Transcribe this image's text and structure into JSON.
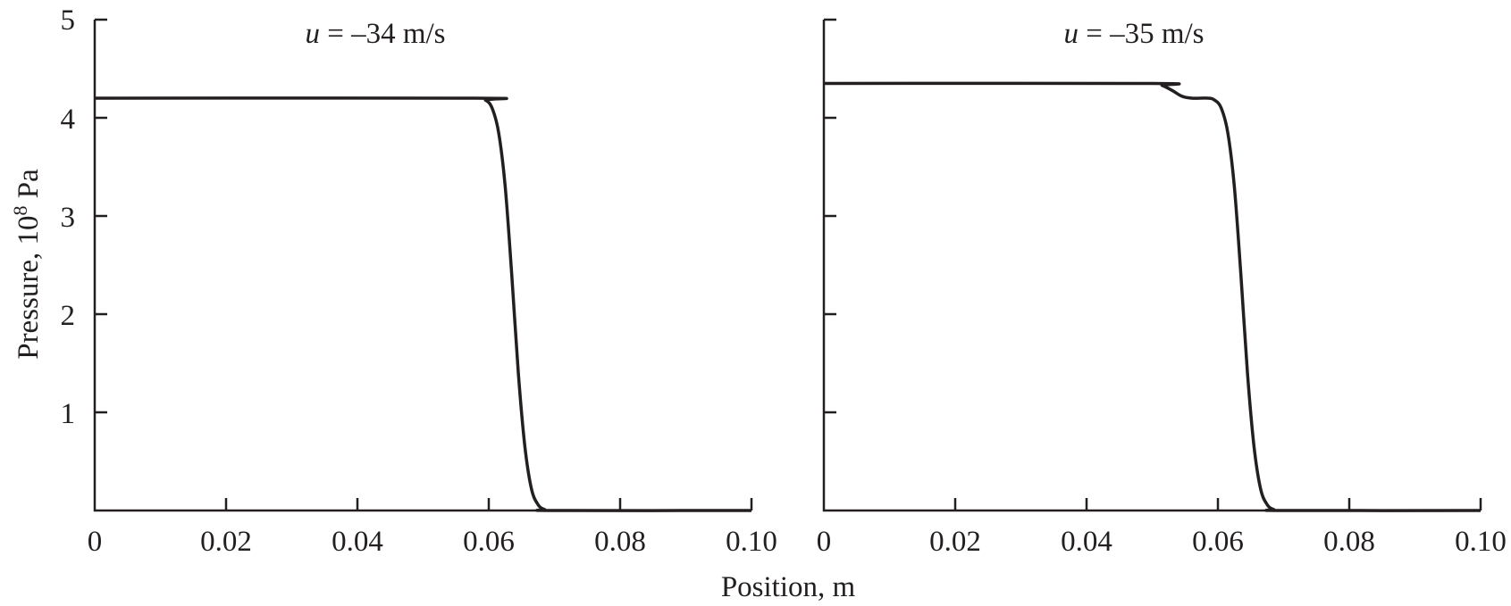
{
  "chart_data": [
    {
      "type": "line",
      "title_var": "u",
      "title_rest": " = –34 m/s",
      "xlabel": "Position, m",
      "ylabel": "Pressure, 10",
      "ylabel_exp": "8",
      "ylabel_unit": " Pa",
      "xlim": [
        0,
        0.1
      ],
      "ylim": [
        0,
        5
      ],
      "xticks": [
        0,
        0.02,
        0.04,
        0.06,
        0.08,
        0.1
      ],
      "xtick_labels": [
        "0",
        "0.02",
        "0.04",
        "0.06",
        "0.08",
        "0.10"
      ],
      "yticks": [
        1,
        2,
        3,
        4,
        5
      ],
      "ytick_labels": [
        "1",
        "2",
        "3",
        "4",
        "5"
      ],
      "grid": false,
      "series": [
        {
          "x": [
            0,
            0.058,
            0.0595,
            0.0605,
            0.0615,
            0.0625,
            0.0635,
            0.0645,
            0.0655,
            0.0665,
            0.0675,
            0.0685,
            0.07,
            0.1
          ],
          "y": [
            4.2,
            4.2,
            4.18,
            4.1,
            3.85,
            3.3,
            2.4,
            1.4,
            0.65,
            0.22,
            0.06,
            0.01,
            0,
            0
          ]
        }
      ]
    },
    {
      "type": "line",
      "title_var": "u",
      "title_rest": " = –35 m/s",
      "xlim": [
        0,
        0.1
      ],
      "ylim": [
        0,
        5
      ],
      "xticks": [
        0,
        0.02,
        0.04,
        0.06,
        0.08,
        0.1
      ],
      "xtick_labels": [
        "0",
        "0.02",
        "0.04",
        "0.06",
        "0.08",
        "0.10"
      ],
      "yticks": [
        1,
        2,
        3,
        4,
        5
      ],
      "grid": false,
      "series": [
        {
          "x": [
            0,
            0.05,
            0.0515,
            0.053,
            0.0545,
            0.056,
            0.0585,
            0.0595,
            0.0605,
            0.0615,
            0.0625,
            0.0635,
            0.0645,
            0.0655,
            0.0665,
            0.0675,
            0.0685,
            0.07,
            0.1
          ],
          "y": [
            4.35,
            4.35,
            4.33,
            4.28,
            4.22,
            4.2,
            4.2,
            4.18,
            4.1,
            3.85,
            3.3,
            2.4,
            1.4,
            0.65,
            0.22,
            0.06,
            0.01,
            0,
            0
          ]
        }
      ]
    }
  ]
}
